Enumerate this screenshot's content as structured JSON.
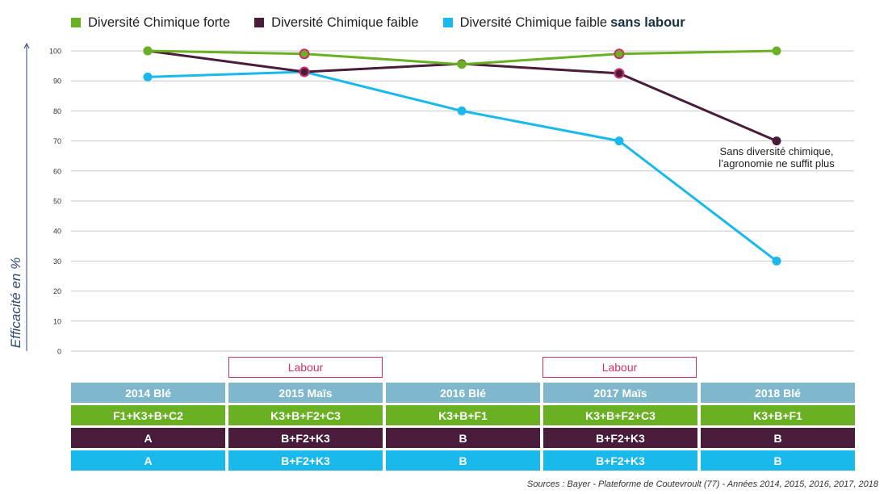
{
  "chart_data": {
    "type": "line",
    "ylabel": "Efficacité en %",
    "ylim": [
      0,
      100
    ],
    "yticks": [
      0,
      10,
      20,
      30,
      40,
      50,
      60,
      70,
      80,
      90,
      100
    ],
    "grid": true,
    "legend_placement": "top-left",
    "x": [
      "2014",
      "2015",
      "2016",
      "2017",
      "2018"
    ],
    "series": [
      {
        "name": "Diversité Chimique forte",
        "color": "#6ab023",
        "values": [
          100,
          99,
          95.5,
          99,
          100
        ]
      },
      {
        "name": "Diversité Chimique faible",
        "color": "#4a1c3b",
        "values": [
          100,
          93,
          95.7,
          92.5,
          70
        ]
      },
      {
        "name": "Diversité Chimique faible sans labour",
        "name_plain": "Diversité Chimique faible",
        "name_bold": "sans labour",
        "color": "#1ab9ec",
        "values": [
          91.3,
          93,
          80,
          70,
          30
        ]
      }
    ],
    "labour_markers": {
      "years": [
        1,
        3
      ],
      "color": "#d0306a"
    },
    "annotation": {
      "line1": "Sans diversité chimique,",
      "line2": "l’agronomie ne suffit plus"
    }
  },
  "labour": {
    "label": "Labour",
    "color": "#d0306a"
  },
  "table": {
    "rows": [
      {
        "color": "#7fb7cc",
        "cells": [
          "2014 Blé",
          "2015 Maïs",
          "2016 Blé",
          "2017 Maïs",
          "2018 Blé"
        ]
      },
      {
        "color": "#6ab023",
        "cells": [
          "F1+K3+B+C2",
          "K3+B+F2+C3",
          "K3+B+F1",
          "K3+B+F2+C3",
          "K3+B+F1"
        ]
      },
      {
        "color": "#4a1c3b",
        "cells": [
          "A",
          "B+F2+K3",
          "B",
          "B+F2+K3",
          "B"
        ]
      },
      {
        "color": "#1ab9ec",
        "cells": [
          "A",
          "B+F2+K3",
          "B",
          "B+F2+K3",
          "B"
        ]
      }
    ]
  },
  "source": "Sources : Bayer - Plateforme de Coutevroult (77) - Années 2014, 2015, 2016, 2017, 2018",
  "colors": {
    "grid": "#c8c8c8",
    "axis_label": "#2d4a73"
  }
}
